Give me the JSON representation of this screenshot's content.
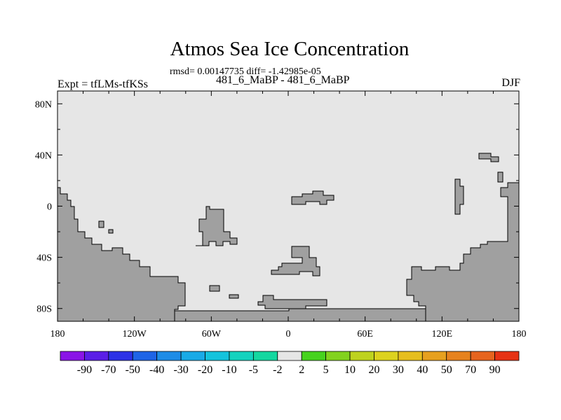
{
  "title": "Atmos Sea Ice Concentration",
  "stats_line": "rmsd= 0.00147735  diff= -1.42985e-05",
  "subtitle": "481_6_MaBP - 481_6_MaBP",
  "experiment": "Expt = tfLMs-tfKSs",
  "season": "DJF",
  "map": {
    "lon_range": [
      -180,
      180
    ],
    "lat_range": [
      -90,
      90
    ],
    "x_tick_labels": [
      "180",
      "120W",
      "60W",
      "0",
      "60E",
      "120E",
      "180"
    ],
    "y_tick_labels": [
      "80N",
      "40N",
      "0",
      "40S",
      "80S"
    ],
    "ocean_color": "#e6e6e6",
    "land_color": "#a0a0a0"
  },
  "colorbar": {
    "labels": [
      "-90",
      "-70",
      "-50",
      "-40",
      "-30",
      "-20",
      "-10",
      "-5",
      "-2",
      "2",
      "5",
      "10",
      "20",
      "30",
      "40",
      "50",
      "70",
      "90"
    ],
    "colors": [
      "#8a14e6",
      "#5a1ee6",
      "#2d32e6",
      "#1e64e6",
      "#1e8ce6",
      "#19aae6",
      "#14c3dc",
      "#14d2be",
      "#14d7a0",
      "#e6e6e6",
      "#46d21e",
      "#82d21e",
      "#bed21e",
      "#dcd21e",
      "#e6be1e",
      "#e6a01e",
      "#e6821e",
      "#e6641e",
      "#e63214"
    ]
  }
}
